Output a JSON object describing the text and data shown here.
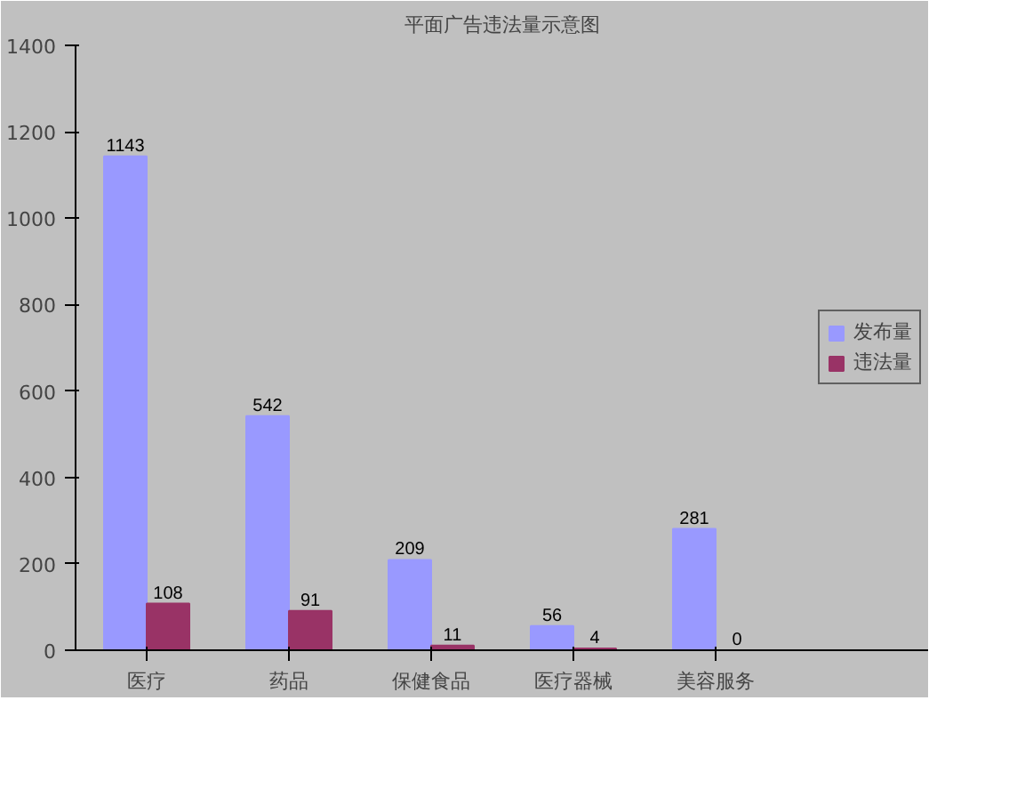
{
  "chart_data": {
    "type": "bar",
    "title": "平面广告违法量示意图",
    "categories": [
      "医疗",
      "药品",
      "保健食品",
      "医疗器械",
      "美容服务"
    ],
    "series": [
      {
        "name": "发布量",
        "color": "#9999ff",
        "values": [
          1143,
          542,
          209,
          56,
          281
        ]
      },
      {
        "name": "违法量",
        "color": "#993366",
        "values": [
          108,
          91,
          11,
          4,
          0
        ]
      }
    ],
    "ylim": [
      0,
      1400
    ],
    "yticks": [
      0,
      200,
      400,
      600,
      800,
      1000,
      1200,
      1400
    ],
    "grid": false,
    "legend": "right",
    "data_labels": true
  }
}
